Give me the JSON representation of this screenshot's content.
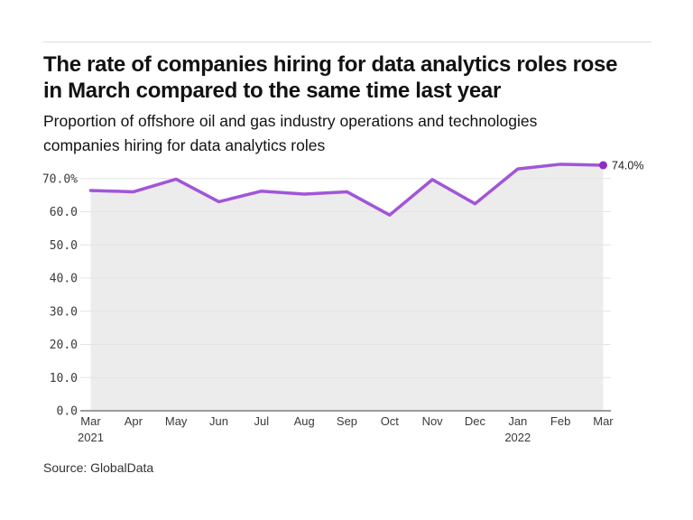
{
  "header": {
    "title_lines": [
      "The rate of companies hiring for data analytics roles rose",
      "in March compared to the same time last year"
    ],
    "subtitle_lines": [
      "Proportion of offshore oil and gas industry operations and technologies",
      "companies hiring for data analytics roles"
    ]
  },
  "chart_data": {
    "type": "line",
    "title": "The rate of companies hiring for data analytics roles rose in March compared to the same time last year",
    "subtitle": "Proportion of offshore oil and gas industry operations and technologies companies hiring for data analytics roles",
    "unit": "%",
    "x": [
      {
        "label": "Mar",
        "sub": "2021"
      },
      {
        "label": "Apr"
      },
      {
        "label": "May"
      },
      {
        "label": "Jun"
      },
      {
        "label": "Jul"
      },
      {
        "label": "Aug"
      },
      {
        "label": "Sep"
      },
      {
        "label": "Oct"
      },
      {
        "label": "Nov"
      },
      {
        "label": "Dec"
      },
      {
        "label": "Jan",
        "sub": "2022"
      },
      {
        "label": "Feb"
      },
      {
        "label": "Mar"
      }
    ],
    "values": [
      66.4,
      66.0,
      69.8,
      63.0,
      66.2,
      65.3,
      66.0,
      59.0,
      69.7,
      62.4,
      72.9,
      74.3,
      74.0
    ],
    "end_label": "74.0%",
    "ylim": [
      0,
      70
    ],
    "grid": true,
    "legend": "none",
    "yticks": [
      {
        "v": 0,
        "label": "0.0"
      },
      {
        "v": 10,
        "label": "10.0"
      },
      {
        "v": 20,
        "label": "20.0"
      },
      {
        "v": 30,
        "label": "30.0"
      },
      {
        "v": 40,
        "label": "40.0"
      },
      {
        "v": 50,
        "label": "50.0"
      },
      {
        "v": 60,
        "label": "60.0"
      },
      {
        "v": 70,
        "label": "70.0%"
      }
    ],
    "colors": {
      "line": "#a155d8",
      "marker": "#8d2fc4",
      "area": "#ececec",
      "grid": "#e3e3e3",
      "axis": "#9b9b9b",
      "tick_text": "#3a3a3a"
    }
  },
  "footer": {
    "source": "Source: GlobalData"
  }
}
